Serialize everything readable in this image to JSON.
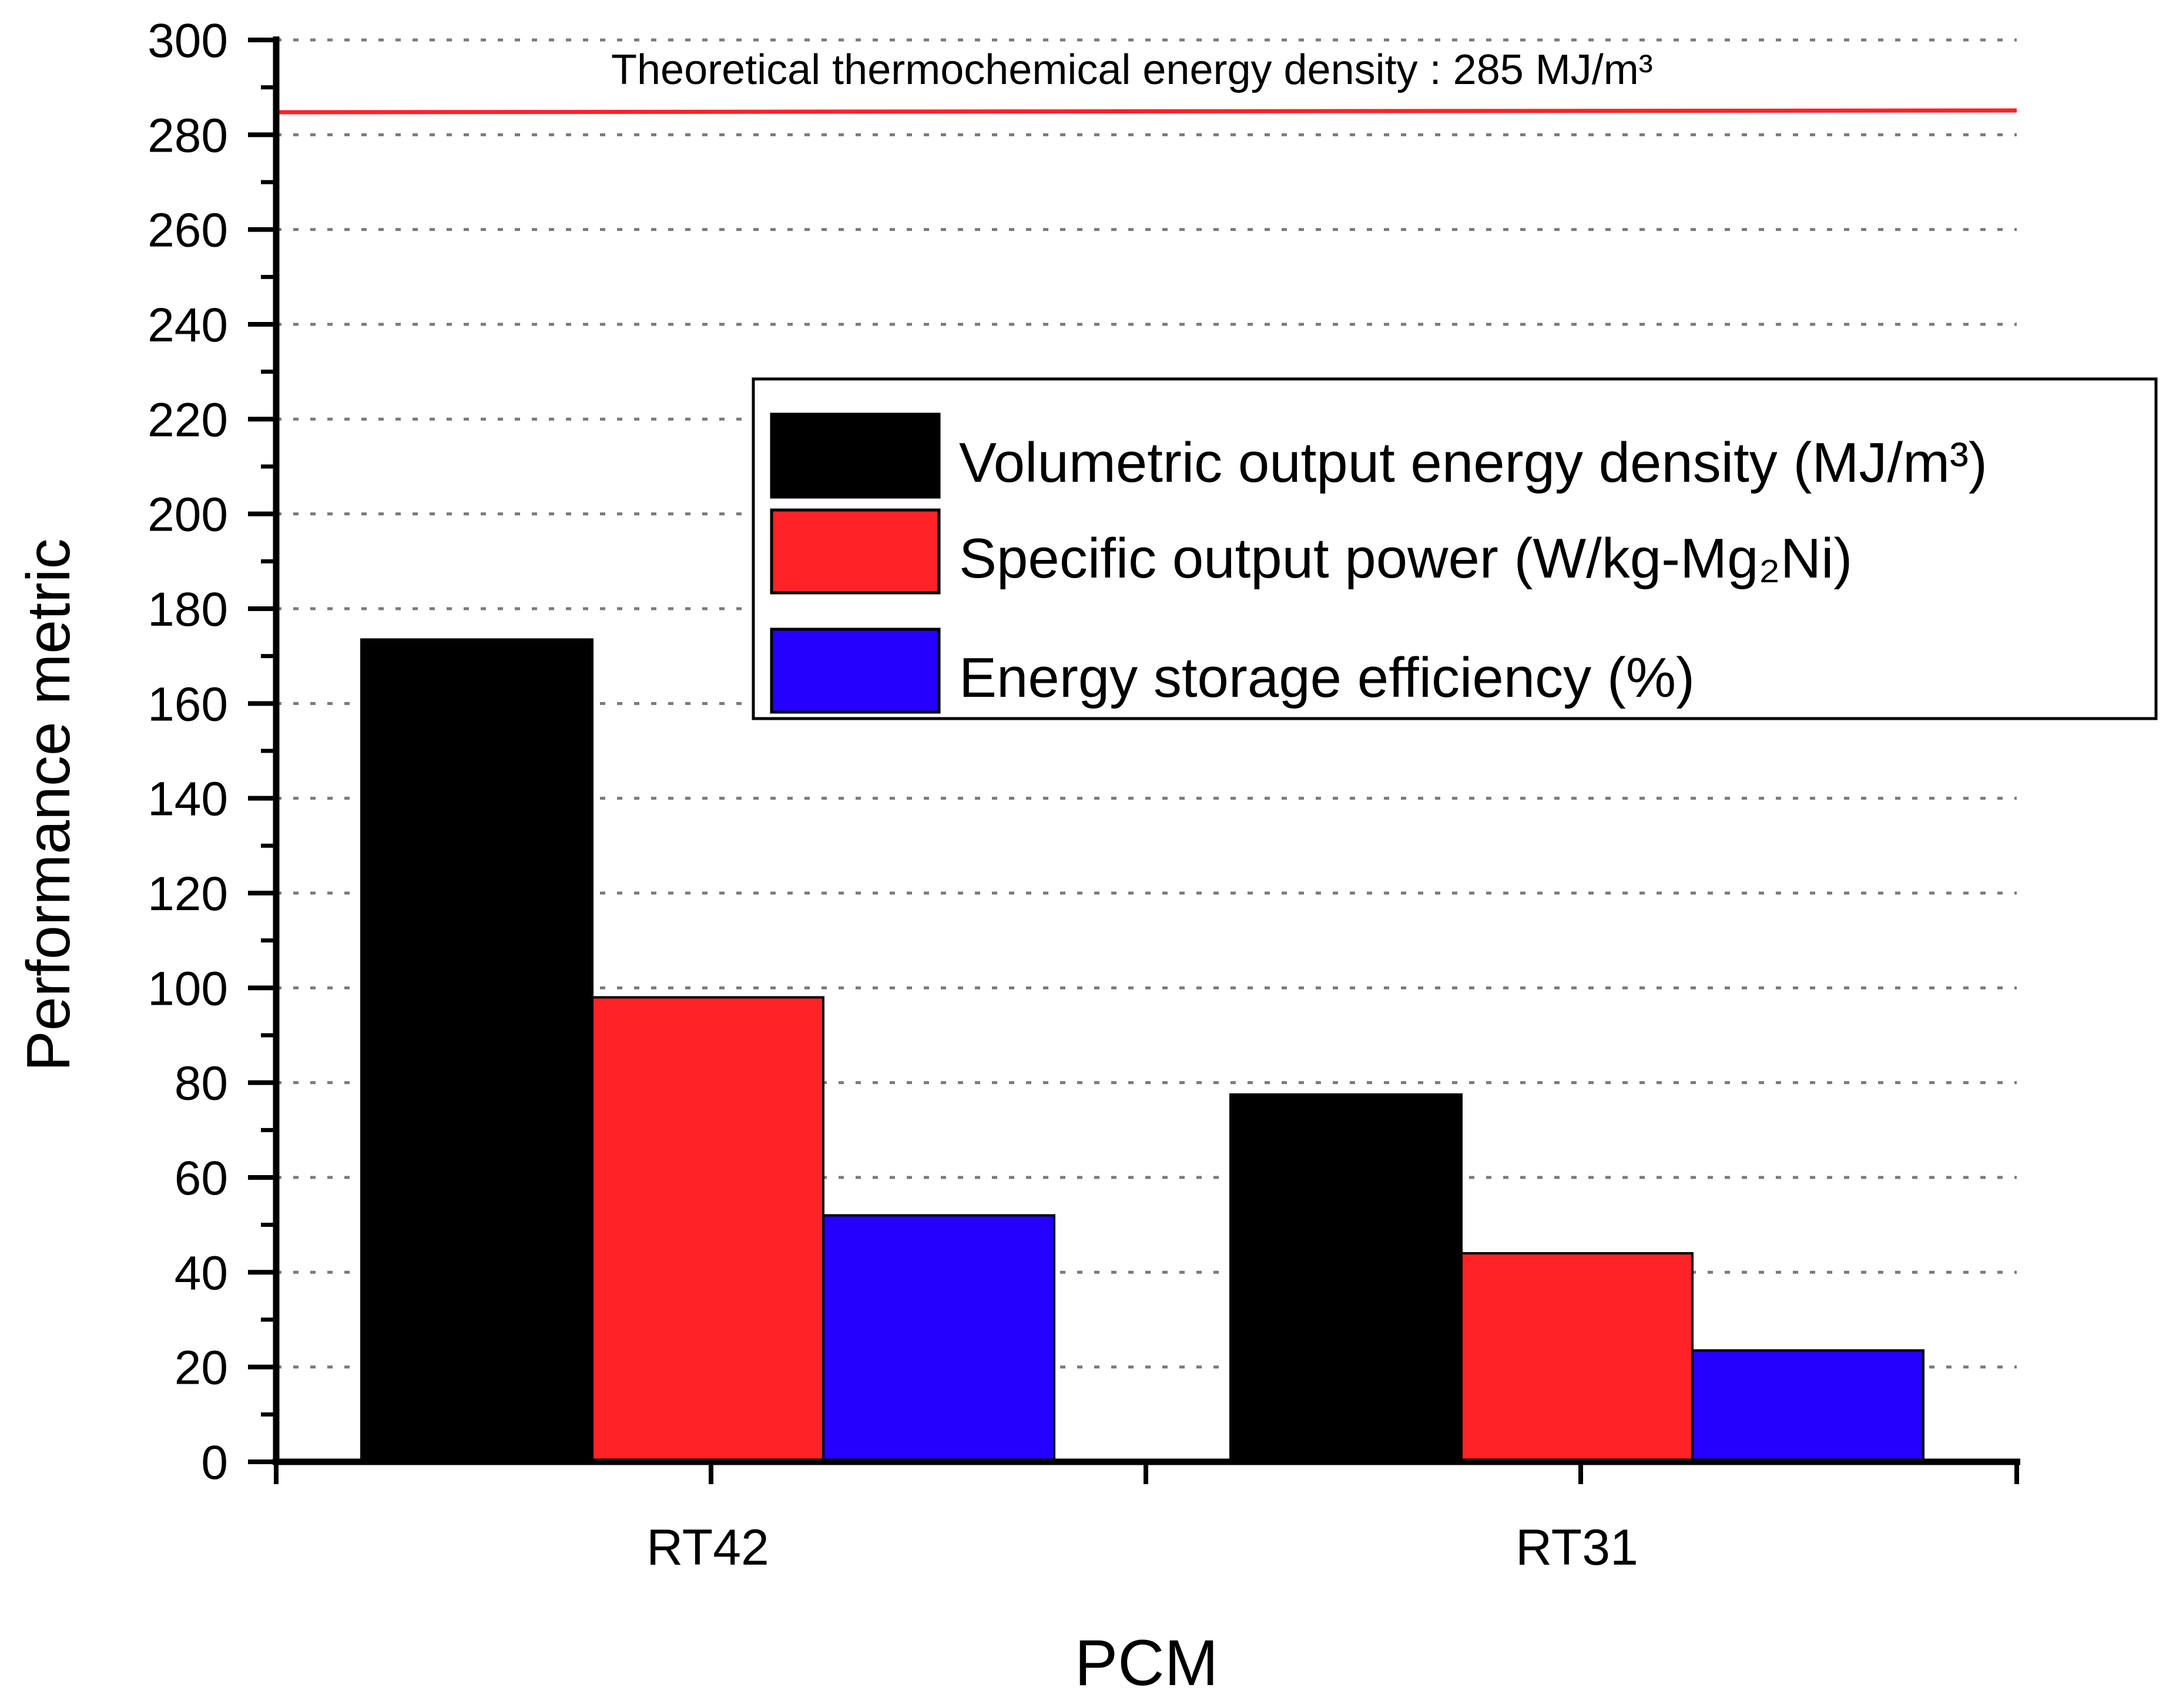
{
  "chart_data": {
    "type": "bar",
    "title": "",
    "xlabel": "PCM",
    "ylabel": "Performance metric",
    "categories": [
      "RT42",
      "RT31"
    ],
    "series": [
      {
        "name": "Volumetric output energy density (MJ/m³)",
        "color": "#000000",
        "values": [
          173.5,
          77.5
        ]
      },
      {
        "name": "Specific output power (W/kg-Mg₂Ni)",
        "color": "#ff2227",
        "values": [
          98,
          44
        ]
      },
      {
        "name": "Energy storage efficiency (%)",
        "color": "#2500ff",
        "values": [
          52,
          23.5
        ]
      }
    ],
    "ylim": [
      0,
      300
    ],
    "yticks": [
      "0",
      "20",
      "40",
      "60",
      "80",
      "100",
      "120",
      "140",
      "160",
      "180",
      "200",
      "220",
      "240",
      "260",
      "280",
      "300"
    ],
    "grid": true,
    "legend_position": "upper-right",
    "reference_line": {
      "value": 285,
      "color": "#ff2227",
      "label": "Theoretical thermochemical energy density : 285 MJ/m³"
    }
  }
}
